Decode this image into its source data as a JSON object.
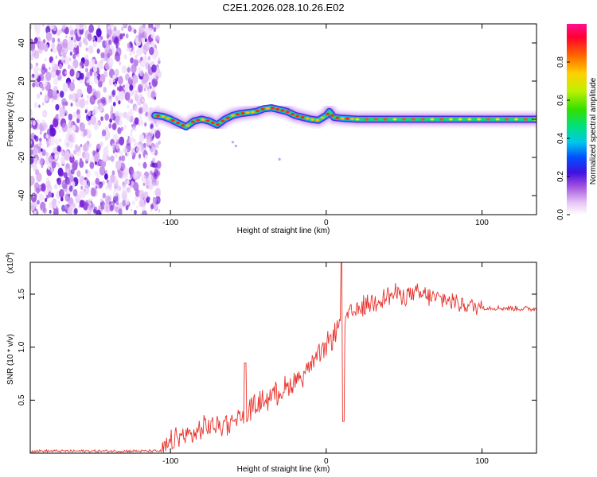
{
  "title": "C2E1.2026.028.10.26.E02",
  "chart_data": [
    {
      "type": "heatmap",
      "name": "spectrogram",
      "xlabel": "Height of straight line (km)",
      "ylabel": "Frequency (Hz)",
      "xlim": [
        -190,
        135
      ],
      "ylim": [
        -50,
        50
      ],
      "xticks": [
        -100,
        0,
        100
      ],
      "yticks": [
        40,
        20,
        0,
        -20,
        -40
      ],
      "noise_region_x": [
        -190,
        -107
      ],
      "ridge": {
        "x": [
          -110,
          -105,
          -100,
          -95,
          -90,
          -85,
          -80,
          -75,
          -70,
          -65,
          -60,
          -55,
          -50,
          -45,
          -40,
          -35,
          -30,
          -25,
          -20,
          -15,
          -10,
          -5,
          0,
          2,
          5,
          10,
          20,
          40,
          60,
          80,
          100,
          120,
          135
        ],
        "y": [
          2,
          1.5,
          0,
          -2,
          -4,
          -1,
          0,
          -1,
          -3,
          0,
          2,
          3,
          3.5,
          4,
          5.5,
          6,
          5,
          4,
          2,
          1,
          0,
          -0.5,
          2,
          4,
          1,
          0.5,
          0,
          0,
          0,
          0,
          0,
          0,
          0
        ]
      },
      "colorbar": {
        "label": "Normalized spectral amplitude",
        "ticks": [
          0.0,
          0.2,
          0.4,
          0.6,
          0.8
        ],
        "range": [
          0,
          1
        ]
      }
    },
    {
      "type": "line",
      "name": "snr",
      "xlabel": "Height of straight line (km)",
      "ylabel": "SNR (10 * v/v)",
      "multiplier": "(x10",
      "multiplier_exp": "4",
      "xlim": [
        -190,
        135
      ],
      "ylim": [
        0,
        1.8
      ],
      "xticks": [
        -100,
        0,
        100
      ],
      "yticks": [
        0.5,
        1.0,
        1.5
      ],
      "color": "#e8332d",
      "trend": {
        "x": [
          -190,
          -105,
          -95,
          -85,
          -75,
          -65,
          -55,
          -45,
          -35,
          -25,
          -15,
          -8,
          0,
          8,
          15,
          25,
          35,
          45,
          55,
          65,
          75,
          85,
          95,
          110,
          135
        ],
        "y": [
          0.02,
          0.02,
          0.15,
          0.18,
          0.25,
          0.28,
          0.35,
          0.45,
          0.55,
          0.62,
          0.75,
          0.85,
          1.0,
          1.2,
          1.3,
          1.4,
          1.47,
          1.5,
          1.5,
          1.48,
          1.45,
          1.42,
          1.38,
          1.37,
          1.36
        ]
      },
      "spikes": [
        {
          "x": -52,
          "y": 0.85
        },
        {
          "x": 10,
          "y": 1.8
        },
        {
          "x": 11,
          "y": 0.3
        }
      ]
    }
  ]
}
